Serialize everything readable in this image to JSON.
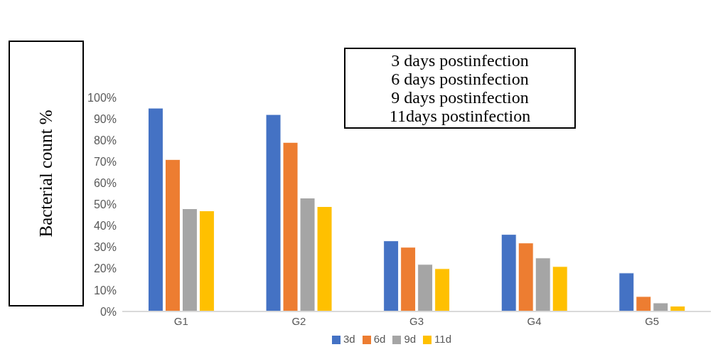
{
  "chart_data": {
    "type": "bar",
    "ylabel": "Bacterial count %",
    "annotations": [
      "3 days postinfection",
      "6 days postinfection",
      "9 days postinfection",
      "11days postinfection"
    ],
    "categories": [
      "G1",
      "G2",
      "G3",
      "G4",
      "G5"
    ],
    "series": [
      {
        "name": "3d",
        "color": "#4472c4",
        "values": [
          95,
          92,
          33,
          36,
          18
        ]
      },
      {
        "name": "6d",
        "color": "#ed7d31",
        "values": [
          71,
          79,
          30,
          32,
          7
        ]
      },
      {
        "name": "9d",
        "color": "#a5a5a5",
        "values": [
          48,
          53,
          22,
          25,
          4
        ]
      },
      {
        "name": "11d",
        "color": "#ffc000",
        "values": [
          47,
          49,
          20,
          21,
          2.5
        ]
      }
    ],
    "ylim": [
      0,
      100
    ],
    "yticks": [
      {
        "value": 0,
        "label": "0%"
      },
      {
        "value": 10,
        "label": "10%"
      },
      {
        "value": 20,
        "label": "20%"
      },
      {
        "value": 30,
        "label": "30%"
      },
      {
        "value": 40,
        "label": "40%"
      },
      {
        "value": 50,
        "label": "50%"
      },
      {
        "value": 60,
        "label": "60%"
      },
      {
        "value": 70,
        "label": "70%"
      },
      {
        "value": 80,
        "label": "80%"
      },
      {
        "value": 90,
        "label": "90%"
      },
      {
        "value": 100,
        "label": "100%"
      }
    ],
    "grid": false,
    "legend": "bottom"
  }
}
